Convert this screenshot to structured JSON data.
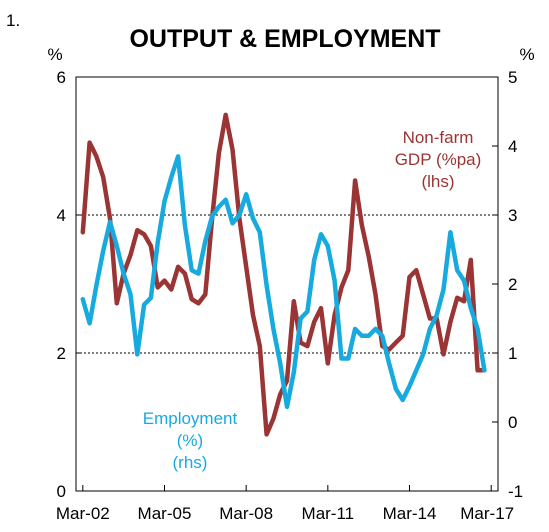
{
  "chart_data": {
    "type": "line",
    "figure_number": "1.",
    "title": "OUTPUT & EMPLOYMENT",
    "left_axis": {
      "unit": "%",
      "ylim": [
        0,
        6
      ],
      "ticks": [
        "0",
        "2",
        "4",
        "6"
      ]
    },
    "right_axis": {
      "unit": "%",
      "ylim": [
        -1,
        5
      ],
      "ticks": [
        "-1",
        "0",
        "1",
        "2",
        "3",
        "4",
        "5"
      ]
    },
    "x_labels": [
      "Mar-02",
      "Mar-05",
      "Mar-08",
      "Mar-11",
      "Mar-14",
      "Mar-17"
    ],
    "gridlines_left": [
      2,
      4
    ],
    "series": [
      {
        "name": "Non-farm GDP (%pa) (lhs)",
        "label_lines": [
          "Non-farm",
          "GDP (%pa)",
          "(lhs)"
        ],
        "axis": "left",
        "color": "#9b3434",
        "x": [
          2002.0,
          2002.25,
          2002.5,
          2002.75,
          2003.0,
          2003.25,
          2003.5,
          2003.75,
          2004.0,
          2004.25,
          2004.5,
          2004.75,
          2005.0,
          2005.25,
          2005.5,
          2005.75,
          2006.0,
          2006.25,
          2006.5,
          2006.75,
          2007.0,
          2007.25,
          2007.5,
          2007.75,
          2008.0,
          2008.25,
          2008.5,
          2008.75,
          2009.0,
          2009.25,
          2009.5,
          2009.75,
          2010.0,
          2010.25,
          2010.5,
          2010.75,
          2011.0,
          2011.25,
          2011.5,
          2011.75,
          2012.0,
          2012.25,
          2012.5,
          2012.75,
          2013.0,
          2013.25,
          2013.5,
          2013.75,
          2014.0,
          2014.25,
          2014.5,
          2014.75,
          2015.0,
          2015.25,
          2015.5,
          2015.75,
          2016.0,
          2016.25,
          2016.5,
          2016.75
        ],
        "values": [
          3.75,
          5.05,
          4.85,
          4.55,
          3.95,
          2.72,
          3.15,
          3.42,
          3.78,
          3.72,
          3.55,
          2.95,
          3.05,
          2.92,
          3.25,
          3.15,
          2.78,
          2.72,
          2.85,
          3.95,
          4.9,
          5.45,
          4.95,
          3.95,
          3.25,
          2.55,
          2.1,
          0.82,
          1.05,
          1.4,
          1.6,
          2.75,
          2.15,
          2.1,
          2.45,
          2.65,
          1.85,
          2.55,
          2.95,
          3.2,
          4.5,
          3.85,
          3.4,
          2.85,
          2.1,
          2.05,
          2.15,
          2.25,
          3.1,
          3.2,
          2.85,
          2.5,
          2.5,
          1.98,
          2.45,
          2.8,
          2.75,
          3.35,
          1.75,
          1.75
        ]
      },
      {
        "name": "Employment (%) (rhs)",
        "label_lines": [
          "Employment",
          "(%)",
          "(rhs)"
        ],
        "axis": "right",
        "color": "#17aadf",
        "x": [
          2002.0,
          2002.25,
          2002.5,
          2002.75,
          2003.0,
          2003.25,
          2003.5,
          2003.75,
          2004.0,
          2004.25,
          2004.5,
          2004.75,
          2005.0,
          2005.25,
          2005.5,
          2005.75,
          2006.0,
          2006.25,
          2006.5,
          2006.75,
          2007.0,
          2007.25,
          2007.5,
          2007.75,
          2008.0,
          2008.25,
          2008.5,
          2008.75,
          2009.0,
          2009.25,
          2009.5,
          2009.75,
          2010.0,
          2010.25,
          2010.5,
          2010.75,
          2011.0,
          2011.25,
          2011.5,
          2011.75,
          2012.0,
          2012.25,
          2012.5,
          2012.75,
          2013.0,
          2013.25,
          2013.5,
          2013.75,
          2014.0,
          2014.25,
          2014.5,
          2014.75,
          2015.0,
          2015.25,
          2015.5,
          2015.75,
          2016.0,
          2016.25,
          2016.5,
          2016.75
        ],
        "values": [
          1.78,
          1.43,
          1.98,
          2.48,
          2.9,
          2.55,
          2.15,
          1.85,
          0.98,
          1.7,
          1.8,
          2.6,
          3.2,
          3.55,
          3.85,
          2.85,
          2.2,
          2.15,
          2.62,
          2.98,
          3.12,
          3.22,
          2.88,
          3.0,
          3.3,
          2.95,
          2.75,
          1.98,
          1.35,
          0.85,
          0.22,
          0.72,
          1.5,
          1.6,
          2.35,
          2.72,
          2.55,
          2.05,
          0.92,
          0.92,
          1.35,
          1.25,
          1.25,
          1.35,
          1.25,
          0.85,
          0.48,
          0.32,
          0.52,
          0.75,
          0.98,
          1.35,
          1.55,
          1.92,
          2.75,
          2.2,
          2.05,
          1.65,
          1.35,
          0.75
        ]
      }
    ]
  }
}
